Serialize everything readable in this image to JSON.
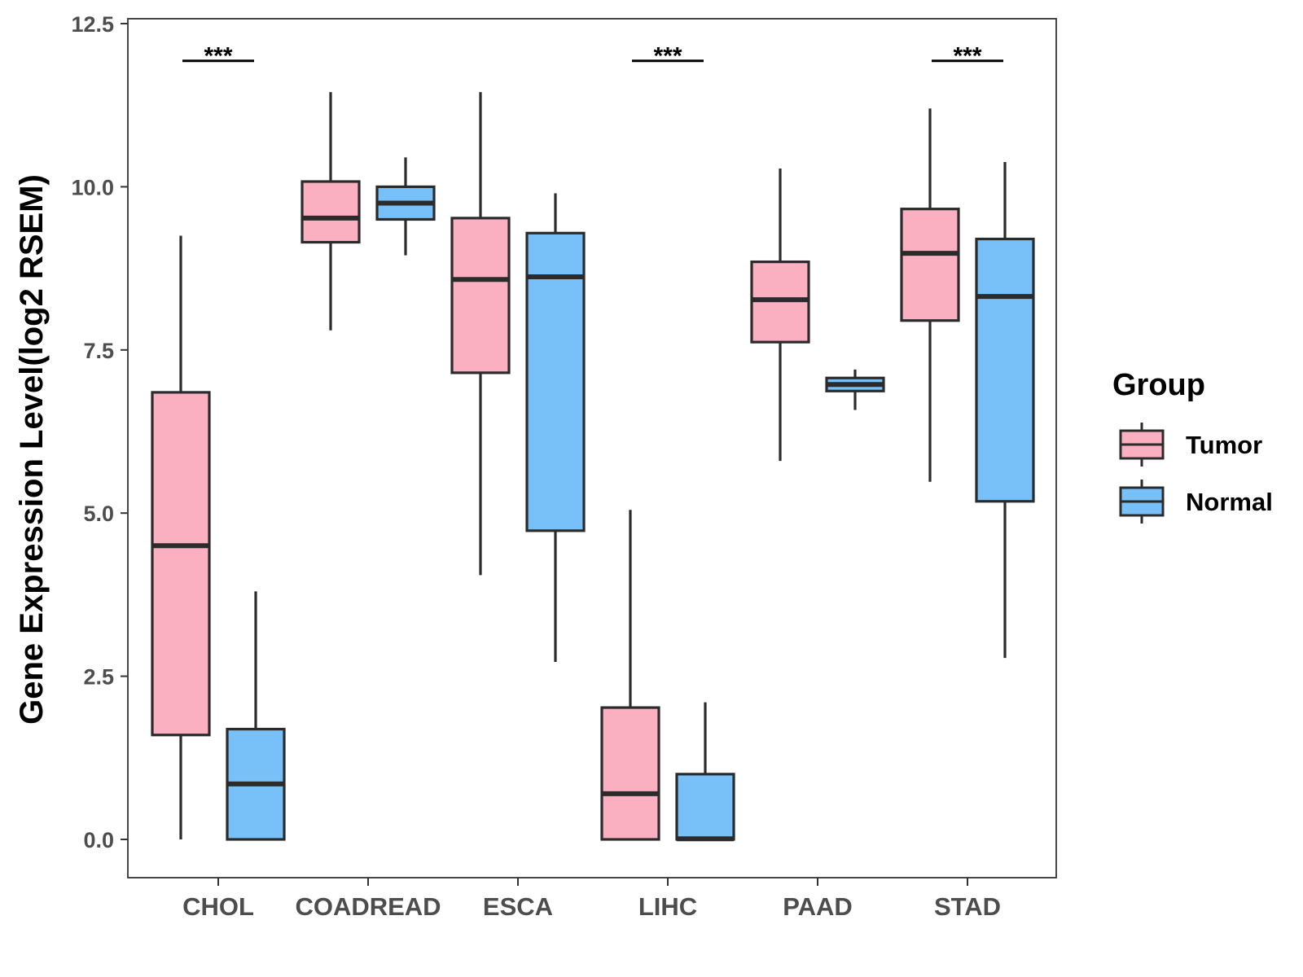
{
  "chart_data": {
    "type": "boxplot",
    "title": "",
    "xlabel": "",
    "ylabel": "Gene Expression Level(log2 RSEM)",
    "ylim": [
      -0.58,
      12.6
    ],
    "yticks": [
      0.0,
      2.5,
      5.0,
      7.5,
      10.0,
      12.5
    ],
    "ytick_labels": [
      "0.0",
      "2.5",
      "5.0",
      "7.5",
      "10.0",
      "12.5"
    ],
    "grid": false,
    "legend": {
      "title": "Group",
      "position": "right",
      "entries": [
        {
          "name": "Tumor",
          "color": "#FBB0C2"
        },
        {
          "name": "Normal",
          "color": "#78C1F8"
        }
      ]
    },
    "categories": [
      "CHOL",
      "COADREAD",
      "ESCA",
      "LIHC",
      "PAAD",
      "STAD"
    ],
    "series": [
      {
        "name": "Tumor",
        "color": "#FBB0C2",
        "boxes": [
          {
            "min": 0.0,
            "q1": 1.6,
            "median": 4.5,
            "q3": 6.85,
            "max": 9.25
          },
          {
            "min": 7.8,
            "q1": 9.15,
            "median": 9.52,
            "q3": 10.08,
            "max": 11.45
          },
          {
            "min": 4.05,
            "q1": 7.15,
            "median": 8.58,
            "q3": 9.52,
            "max": 11.45
          },
          {
            "min": 0.0,
            "q1": 0.0,
            "median": 0.7,
            "q3": 2.02,
            "max": 5.05
          },
          {
            "min": 5.8,
            "q1": 7.62,
            "median": 8.27,
            "q3": 8.85,
            "max": 10.28
          },
          {
            "min": 5.48,
            "q1": 7.95,
            "median": 8.98,
            "q3": 9.66,
            "max": 11.2
          }
        ]
      },
      {
        "name": "Normal",
        "color": "#78C1F8",
        "boxes": [
          {
            "min": 0.0,
            "q1": 0.0,
            "median": 0.85,
            "q3": 1.69,
            "max": 3.8
          },
          {
            "min": 8.95,
            "q1": 9.5,
            "median": 9.75,
            "q3": 10.0,
            "max": 10.45
          },
          {
            "min": 2.72,
            "q1": 4.73,
            "median": 8.62,
            "q3": 9.29,
            "max": 9.9
          },
          {
            "min": 0.0,
            "q1": 0.0,
            "median": 0.01,
            "q3": 1.0,
            "max": 2.1
          },
          {
            "min": 6.58,
            "q1": 6.87,
            "median": 6.97,
            "q3": 7.07,
            "max": 7.2
          },
          {
            "min": 2.78,
            "q1": 5.18,
            "median": 8.32,
            "q3": 9.2,
            "max": 10.38
          }
        ]
      }
    ],
    "significance": [
      {
        "category": "CHOL",
        "label": "***",
        "y": 11.93
      },
      {
        "category": "LIHC",
        "label": "***",
        "y": 11.93
      },
      {
        "category": "STAD",
        "label": "***",
        "y": 11.93
      }
    ],
    "colors": {
      "tumor": "#FBB0C2",
      "normal": "#78C1F8",
      "outline": "#2B2B2B",
      "axis_text": "#4D4D4D"
    }
  }
}
